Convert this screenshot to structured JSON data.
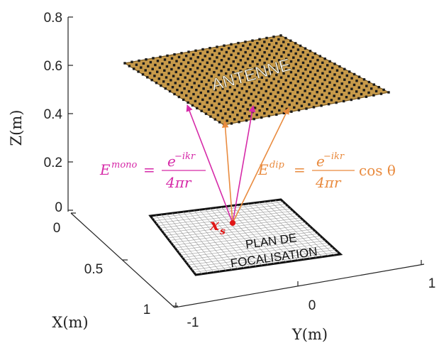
{
  "axes": {
    "z_label": "Z(m)",
    "x_label": "X(m)",
    "y_label": "Y(m)",
    "z_ticks": [
      "0",
      "0.2",
      "0.4",
      "0.6",
      "0.8"
    ],
    "x_ticks": [
      "0",
      "0.5",
      "1"
    ],
    "y_ticks": [
      "-1",
      "0",
      "1"
    ]
  },
  "labels": {
    "antenna": "ANTENNE",
    "focal_plane_line1": "PLAN DE",
    "focal_plane_line2": "FOCALISATION",
    "source_point": "x",
    "source_sub": "s"
  },
  "equations": {
    "mono": {
      "lhs": "E",
      "sup": "mono",
      "numerator": "e",
      "numerator_sup": "−ikr",
      "denominator": "4πr",
      "color": "#d62aa8"
    },
    "dip": {
      "lhs": "E",
      "sup": "dip",
      "numerator": "e",
      "numerator_sup": "−ikr",
      "denominator": "4πr",
      "tail": "cos θ",
      "color": "#e98b3f"
    }
  },
  "colors": {
    "antenna_fill": "#c79a4a",
    "antenna_dot": "#1a1a1a",
    "grid": "#222222",
    "source": "#e01515",
    "mono_ray": "#d62aa8",
    "dip_ray": "#e98b3f"
  }
}
